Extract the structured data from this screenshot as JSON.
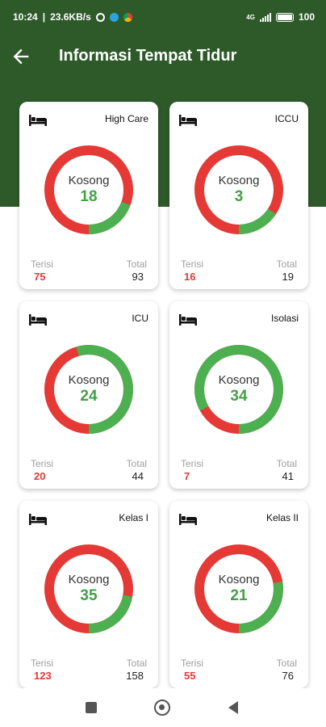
{
  "statusbar": {
    "time": "10:24",
    "speed": "23.6KB/s",
    "network": "4G",
    "battery": "100"
  },
  "appbar": {
    "title": "Informasi Tempat Tidur",
    "back_icon": "arrow-left-icon"
  },
  "colors": {
    "header": "#2e5a2a",
    "occupied": "#e53935",
    "available": "#4caf50"
  },
  "labels": {
    "available": "Kosong",
    "occupied": "Terisi",
    "total": "Total"
  },
  "rooms": [
    {
      "name": "High Care",
      "kosong": "18",
      "terisi": "75",
      "total": "93"
    },
    {
      "name": "ICCU",
      "kosong": "3",
      "terisi": "16",
      "total": "19"
    },
    {
      "name": "ICU",
      "kosong": "24",
      "terisi": "20",
      "total": "44"
    },
    {
      "name": "Isolasi",
      "kosong": "34",
      "terisi": "7",
      "total": "41"
    },
    {
      "name": "Kelas I",
      "kosong": "35",
      "terisi": "123",
      "total": "158"
    },
    {
      "name": "Kelas II",
      "kosong": "21",
      "terisi": "55",
      "total": "76"
    }
  ]
}
